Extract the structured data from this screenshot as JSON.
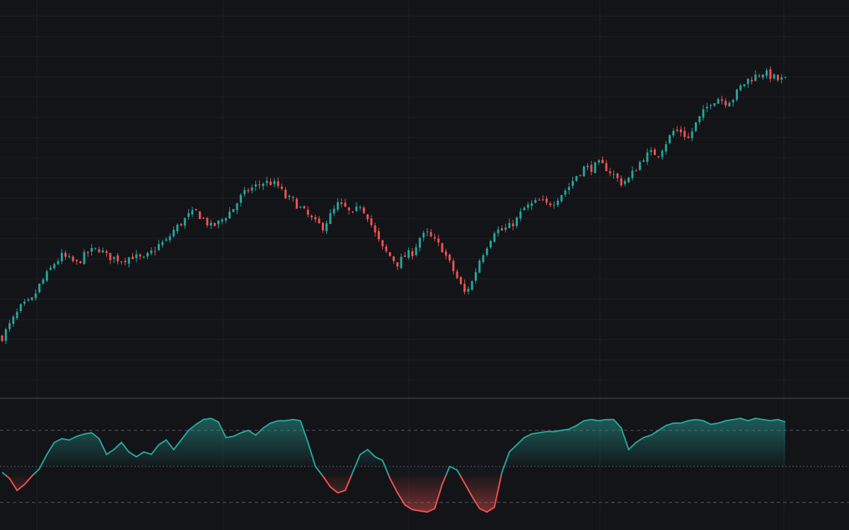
{
  "colors": {
    "background": "#131418",
    "grid": "#1e2026",
    "separator": "#3a3d45",
    "up": "#26a69a",
    "down": "#ef5350",
    "level_line": "#555a63"
  },
  "chart_data": [
    {
      "type": "candlestick",
      "name": "price-pane",
      "grid": true,
      "ylim": [
        0,
        100
      ],
      "close_path": [
        [
          0,
          16
        ],
        [
          5,
          24
        ],
        [
          8,
          26
        ],
        [
          10,
          30
        ],
        [
          12,
          33
        ],
        [
          14,
          36
        ],
        [
          16,
          38
        ],
        [
          20,
          36
        ],
        [
          23,
          39
        ],
        [
          26,
          40
        ],
        [
          28,
          38
        ],
        [
          32,
          37
        ],
        [
          35,
          38
        ],
        [
          38,
          37
        ],
        [
          40,
          39
        ],
        [
          42,
          41
        ],
        [
          44,
          42
        ],
        [
          46,
          45
        ],
        [
          48,
          47
        ],
        [
          50,
          49
        ],
        [
          52,
          50
        ],
        [
          54,
          48
        ],
        [
          56,
          46
        ],
        [
          58,
          47
        ],
        [
          60,
          49
        ],
        [
          62,
          51
        ],
        [
          64,
          54
        ],
        [
          66,
          56
        ],
        [
          68,
          57
        ],
        [
          70,
          58
        ],
        [
          72,
          58
        ],
        [
          74,
          57
        ],
        [
          76,
          54
        ],
        [
          78,
          53
        ],
        [
          80,
          51
        ],
        [
          82,
          49
        ],
        [
          84,
          47
        ],
        [
          86,
          46
        ],
        [
          88,
          49
        ],
        [
          90,
          52
        ],
        [
          92,
          51
        ],
        [
          94,
          49
        ],
        [
          96,
          52
        ],
        [
          98,
          49
        ],
        [
          100,
          44
        ],
        [
          102,
          40
        ],
        [
          104,
          38
        ],
        [
          106,
          36
        ],
        [
          108,
          38
        ],
        [
          110,
          39
        ],
        [
          112,
          43
        ],
        [
          114,
          44
        ],
        [
          116,
          42
        ],
        [
          118,
          40
        ],
        [
          120,
          36
        ],
        [
          122,
          32
        ],
        [
          124,
          28
        ],
        [
          126,
          31
        ],
        [
          128,
          37
        ],
        [
          130,
          41
        ],
        [
          132,
          45
        ],
        [
          134,
          45
        ],
        [
          136,
          46
        ],
        [
          138,
          48
        ],
        [
          140,
          51
        ],
        [
          142,
          52
        ],
        [
          144,
          53
        ],
        [
          146,
          52
        ],
        [
          148,
          53
        ],
        [
          150,
          55
        ],
        [
          152,
          57
        ],
        [
          154,
          60
        ],
        [
          156,
          62
        ],
        [
          158,
          62
        ],
        [
          160,
          63
        ],
        [
          162,
          62
        ],
        [
          164,
          60
        ],
        [
          166,
          58
        ],
        [
          168,
          59
        ],
        [
          170,
          62
        ],
        [
          172,
          65
        ],
        [
          174,
          66
        ],
        [
          176,
          66
        ],
        [
          178,
          69
        ],
        [
          180,
          72
        ],
        [
          182,
          72
        ],
        [
          184,
          70
        ],
        [
          186,
          74
        ],
        [
          188,
          77
        ],
        [
          190,
          80
        ],
        [
          192,
          81
        ],
        [
          194,
          80
        ],
        [
          196,
          81
        ],
        [
          198,
          84
        ],
        [
          200,
          86
        ],
        [
          202,
          87
        ],
        [
          204,
          88
        ],
        [
          206,
          87
        ],
        [
          208,
          86
        ],
        [
          210,
          86
        ]
      ]
    },
    {
      "type": "area",
      "name": "oscillator-pane",
      "ylim": [
        0,
        100
      ],
      "levels": [
        80,
        50,
        20
      ],
      "threshold": 50,
      "series": [
        {
          "values": [
            [
              0,
              45
            ],
            [
              2,
              40
            ],
            [
              4,
              30
            ],
            [
              6,
              35
            ],
            [
              8,
              42
            ],
            [
              10,
              48
            ],
            [
              12,
              60
            ],
            [
              14,
              70
            ],
            [
              16,
              73
            ],
            [
              18,
              72
            ],
            [
              20,
              75
            ],
            [
              22,
              77
            ],
            [
              24,
              78
            ],
            [
              26,
              73
            ],
            [
              28,
              60
            ],
            [
              30,
              64
            ],
            [
              32,
              70
            ],
            [
              34,
              62
            ],
            [
              36,
              58
            ],
            [
              38,
              62
            ],
            [
              40,
              60
            ],
            [
              42,
              68
            ],
            [
              44,
              72
            ],
            [
              46,
              64
            ],
            [
              48,
              72
            ],
            [
              50,
              80
            ],
            [
              52,
              85
            ],
            [
              54,
              89
            ],
            [
              56,
              90
            ],
            [
              58,
              87
            ],
            [
              60,
              74
            ],
            [
              62,
              75
            ],
            [
              64,
              78
            ],
            [
              66,
              80
            ],
            [
              68,
              76
            ],
            [
              70,
              82
            ],
            [
              72,
              86
            ],
            [
              74,
              88
            ],
            [
              76,
              88
            ],
            [
              78,
              89
            ],
            [
              80,
              88
            ],
            [
              82,
              70
            ],
            [
              84,
              50
            ],
            [
              86,
              42
            ],
            [
              88,
              33
            ],
            [
              90,
              28
            ],
            [
              92,
              30
            ],
            [
              94,
              45
            ],
            [
              96,
              60
            ],
            [
              98,
              64
            ],
            [
              100,
              58
            ],
            [
              102,
              55
            ],
            [
              104,
              40
            ],
            [
              106,
              28
            ],
            [
              108,
              18
            ],
            [
              110,
              14
            ],
            [
              112,
              13
            ],
            [
              114,
              12
            ],
            [
              116,
              15
            ],
            [
              118,
              35
            ],
            [
              120,
              50
            ],
            [
              122,
              47
            ],
            [
              124,
              36
            ],
            [
              126,
              25
            ],
            [
              128,
              15
            ],
            [
              130,
              12
            ],
            [
              132,
              16
            ],
            [
              134,
              45
            ],
            [
              136,
              62
            ],
            [
              138,
              68
            ],
            [
              140,
              74
            ],
            [
              142,
              77
            ],
            [
              144,
              78
            ],
            [
              146,
              79
            ],
            [
              148,
              79
            ],
            [
              150,
              80
            ],
            [
              152,
              81
            ],
            [
              154,
              84
            ],
            [
              156,
              88
            ],
            [
              158,
              89
            ],
            [
              160,
              88
            ],
            [
              162,
              89
            ],
            [
              164,
              89
            ],
            [
              166,
              82
            ],
            [
              168,
              64
            ],
            [
              170,
              70
            ],
            [
              172,
              74
            ],
            [
              174,
              76
            ],
            [
              176,
              80
            ],
            [
              178,
              84
            ],
            [
              180,
              86
            ],
            [
              182,
              86
            ],
            [
              184,
              88
            ],
            [
              186,
              89
            ],
            [
              188,
              88
            ],
            [
              190,
              85
            ],
            [
              192,
              86
            ],
            [
              194,
              88
            ],
            [
              196,
              89
            ],
            [
              198,
              90
            ],
            [
              200,
              88
            ],
            [
              202,
              90
            ],
            [
              204,
              89
            ],
            [
              206,
              88
            ],
            [
              208,
              89
            ],
            [
              210,
              87
            ]
          ]
        }
      ]
    }
  ]
}
